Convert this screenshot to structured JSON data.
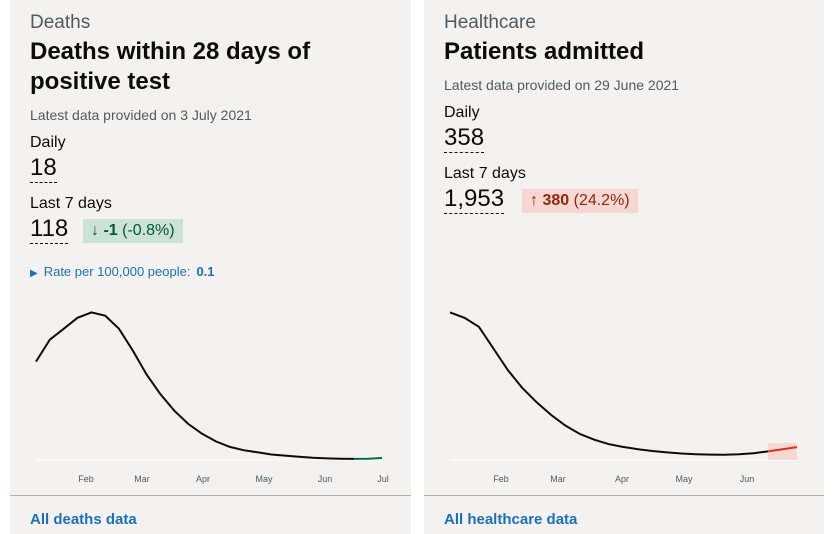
{
  "deaths": {
    "category": "Deaths",
    "title": "Deaths within 28 days of positive test",
    "latest": "Latest data provided on 3 July 2021",
    "daily_label": "Daily",
    "daily_value": "18",
    "week_label": "Last 7 days",
    "week_value": "118",
    "change_arrow": "↓",
    "change_value": "-1",
    "change_percent": "(-0.8%)",
    "rate_label": "Rate per 100,000 people:",
    "rate_value": "0.1",
    "link": "All deaths data"
  },
  "healthcare": {
    "category": "Healthcare",
    "title": "Patients admitted",
    "latest": "Latest data provided on 29 June 2021",
    "daily_label": "Daily",
    "daily_value": "358",
    "week_label": "Last 7 days",
    "week_value": "1,953",
    "change_arrow": "↑",
    "change_value": "380",
    "change_percent": "(24.2%)",
    "link": "All healthcare data"
  },
  "colors": {
    "line": "#0b0c0c",
    "down": "#00703c",
    "up": "#d4351c",
    "link": "#1d70b8"
  },
  "chart_data": [
    {
      "type": "line",
      "series_of": "Deaths within 28 days of positive test",
      "x_ticks": [
        "Feb",
        "Mar",
        "Apr",
        "May",
        "Jun",
        "Jul"
      ],
      "x": [
        0,
        1,
        2,
        3,
        4,
        5,
        6,
        7,
        8,
        9,
        10,
        11,
        12,
        13,
        14,
        15,
        16,
        17,
        18,
        19,
        20,
        21,
        22,
        23,
        24,
        25
      ],
      "values": [
        900,
        1100,
        1200,
        1300,
        1350,
        1320,
        1200,
        1000,
        780,
        600,
        450,
        330,
        240,
        170,
        120,
        90,
        70,
        50,
        40,
        30,
        20,
        15,
        12,
        10,
        12,
        18
      ],
      "recent_segment_color": "#00703c"
    },
    {
      "type": "line",
      "series_of": "Patients admitted",
      "x_ticks": [
        "Feb",
        "Mar",
        "Apr",
        "May",
        "Jun"
      ],
      "x": [
        0,
        1,
        2,
        3,
        4,
        5,
        6,
        7,
        8,
        9,
        10,
        11,
        12,
        13,
        14,
        15,
        16,
        17,
        18,
        19,
        20,
        21,
        22,
        23,
        24
      ],
      "values": [
        4100,
        3950,
        3700,
        3100,
        2500,
        2000,
        1600,
        1250,
        950,
        720,
        560,
        440,
        360,
        300,
        250,
        210,
        180,
        160,
        150,
        145,
        160,
        190,
        240,
        300,
        358
      ],
      "recent_segment_color": "#d4351c"
    }
  ]
}
